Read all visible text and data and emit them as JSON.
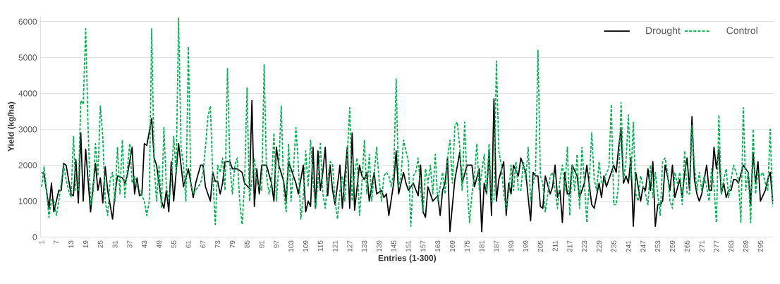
{
  "chart_data": {
    "type": "line",
    "xlabel": "Entries (1-300)",
    "ylabel": "Yield (kg/ha)",
    "xlim": [
      0.5,
      300.5
    ],
    "ylim": [
      0,
      6150
    ],
    "xticks": [
      1,
      7,
      13,
      19,
      25,
      31,
      37,
      43,
      49,
      55,
      61,
      67,
      73,
      79,
      85,
      91,
      97,
      103,
      109,
      115,
      121,
      127,
      133,
      139,
      145,
      151,
      157,
      163,
      169,
      175,
      181,
      187,
      193,
      199,
      205,
      211,
      217,
      223,
      229,
      235,
      241,
      247,
      253,
      259,
      265,
      271,
      277,
      283,
      289,
      295
    ],
    "yticks": [
      0,
      1000,
      2000,
      3000,
      4000,
      5000,
      6000
    ],
    "grid": "y",
    "legend": "top right",
    "marker": "none",
    "series": [
      {
        "name": "Drought",
        "color": "#000000",
        "line_style": "solid",
        "x": [
          1,
          2,
          4,
          5,
          6,
          8,
          9,
          10,
          11,
          13,
          14,
          15,
          16,
          17,
          18,
          19,
          21,
          23,
          24,
          25,
          26,
          27,
          28,
          30,
          31,
          32,
          34,
          35,
          36,
          38,
          39,
          40,
          41,
          42,
          43,
          44,
          46,
          47,
          48,
          50,
          51,
          52,
          53,
          54,
          55,
          57,
          59,
          61,
          63,
          64,
          66,
          67,
          68,
          70,
          71,
          72,
          73,
          74,
          75,
          76,
          78,
          79,
          81,
          83,
          84,
          86,
          87,
          88,
          89,
          90,
          91,
          93,
          94,
          95,
          96,
          97,
          98,
          100,
          101,
          102,
          104,
          105,
          106,
          108,
          109,
          110,
          111,
          112,
          113,
          114,
          115,
          116,
          117,
          118,
          119,
          120,
          121,
          123,
          124,
          125,
          126,
          127,
          128,
          129,
          131,
          132,
          133,
          134,
          135,
          137,
          138,
          140,
          141,
          142,
          143,
          145,
          146,
          147,
          149,
          150,
          151,
          153,
          155,
          156,
          157,
          158,
          159,
          161,
          163,
          164,
          165,
          166,
          167,
          168,
          170,
          172,
          173,
          175,
          177,
          178,
          180,
          181,
          182,
          183,
          184,
          185,
          186,
          187,
          188,
          190,
          191,
          192,
          193,
          194,
          196,
          197,
          199,
          200,
          201,
          202,
          203,
          204,
          205,
          206,
          207,
          209,
          210,
          211,
          212,
          213,
          214,
          215,
          216,
          217,
          218,
          220,
          221,
          223,
          224,
          226,
          227,
          229,
          230,
          231,
          232,
          233,
          235,
          236,
          237,
          238,
          239,
          240,
          241,
          242,
          243,
          244,
          246,
          247,
          248,
          249,
          250,
          251,
          252,
          253,
          254,
          255,
          256,
          257,
          258,
          259,
          260,
          262,
          263,
          264,
          265,
          266,
          267,
          268,
          269,
          270,
          271,
          273,
          274,
          275,
          276,
          277,
          278,
          279,
          280,
          281,
          282,
          283,
          284,
          285,
          286,
          288,
          290,
          291,
          292,
          293,
          294,
          295,
          297,
          298,
          299,
          300
        ],
        "values": [
          1800,
          1750,
          800,
          1500,
          700,
          1300,
          1300,
          2050,
          2000,
          1200,
          1150,
          2150,
          950,
          2900,
          1000,
          2450,
          700,
          2050,
          1300,
          1650,
          950,
          1950,
          1300,
          500,
          1200,
          1700,
          1650,
          1500,
          1700,
          2500,
          1200,
          1650,
          1150,
          1200,
          2600,
          2550,
          3300,
          2200,
          2000,
          1000,
          800,
          1300,
          700,
          2100,
          1000,
          2600,
          1400,
          1900,
          1100,
          1500,
          2000,
          2000,
          1400,
          1000,
          1800,
          1550,
          1550,
          1200,
          1500,
          2100,
          2100,
          1900,
          1900,
          1800,
          1500,
          1350,
          3800,
          850,
          1900,
          1200,
          2000,
          2000,
          1750,
          1500,
          1000,
          2500,
          2000,
          1550,
          1000,
          2100,
          1700,
          1500,
          1200,
          2000,
          700,
          1000,
          850,
          2500,
          800,
          2400,
          1300,
          1800,
          2500,
          1150,
          2000,
          1300,
          900,
          2000,
          800,
          1700,
          2500,
          800,
          2900,
          750,
          2000,
          1700,
          1600,
          1800,
          1000,
          1800,
          1200,
          1300,
          1100,
          1200,
          600,
          1500,
          2400,
          1200,
          1800,
          1500,
          1300,
          1500,
          1150,
          2000,
          700,
          550,
          1400,
          1000,
          1150,
          600,
          1300,
          1500,
          2200,
          150,
          1600,
          2350,
          1500,
          2000,
          2000,
          1400,
          1900,
          150,
          1500,
          1200,
          2400,
          600,
          3850,
          1000,
          1600,
          2100,
          600,
          1500,
          1200,
          2000,
          1700,
          2200,
          1800,
          1100,
          450,
          1800,
          1700,
          1700,
          850,
          800,
          1700,
          1200,
          1400,
          2000,
          1100,
          1300,
          400,
          1800,
          1200,
          1200,
          2000,
          1700,
          1100,
          1500,
          2000,
          900,
          800,
          1500,
          1100,
          1700,
          1400,
          1600,
          2000,
          1800,
          2500,
          3000,
          1500,
          1700,
          1500,
          2200,
          300,
          1800,
          1000,
          1400,
          1300,
          1900,
          1300,
          2100,
          300,
          900,
          900,
          1000,
          2000,
          1700,
          1300,
          2000,
          1100,
          1600,
          1100,
          1800,
          2200,
          1300,
          3350,
          1600,
          1200,
          1000,
          1200,
          2000,
          1300,
          1300,
          2500,
          1900,
          2450,
          1200,
          1500,
          1100,
          1300,
          1300,
          1600,
          1600,
          1500,
          2000,
          1800,
          900,
          2350,
          1500,
          2100,
          1000,
          1300,
          1600,
          1800,
          1000
        ]
      },
      {
        "name": "Control",
        "color": "#00b050",
        "line_style": "dashed",
        "x": [
          1,
          2,
          4,
          5,
          6,
          7,
          8,
          9,
          10,
          11,
          12,
          13,
          14,
          15,
          16,
          17,
          18,
          19,
          20,
          21,
          22,
          23,
          24,
          25,
          26,
          27,
          28,
          29,
          30,
          31,
          32,
          33,
          34,
          35,
          37,
          38,
          39,
          40,
          41,
          42,
          43,
          44,
          45,
          46,
          47,
          48,
          49,
          50,
          51,
          52,
          53,
          54,
          55,
          56,
          57,
          58,
          59,
          60,
          61,
          62,
          63,
          64,
          66,
          67,
          68,
          69,
          70,
          71,
          72,
          73,
          74,
          75,
          76,
          77,
          78,
          79,
          80,
          81,
          82,
          83,
          84,
          85,
          86,
          87,
          88,
          89,
          90,
          91,
          92,
          93,
          94,
          95,
          96,
          97,
          98,
          99,
          100,
          101,
          102,
          103,
          104,
          105,
          106,
          107,
          108,
          109,
          110,
          111,
          112,
          113,
          114,
          115,
          116,
          117,
          118,
          119,
          120,
          121,
          122,
          123,
          124,
          125,
          126,
          127,
          128,
          129,
          130,
          131,
          132,
          133,
          134,
          135,
          136,
          138,
          139,
          140,
          141,
          142,
          143,
          144,
          145,
          146,
          147,
          148,
          149,
          150,
          151,
          152,
          153,
          154,
          155,
          156,
          157,
          158,
          159,
          160,
          161,
          162,
          163,
          164,
          165,
          166,
          167,
          168,
          169,
          170,
          171,
          172,
          173,
          174,
          175,
          176,
          177,
          178,
          179,
          180,
          181,
          182,
          183,
          184,
          185,
          186,
          187,
          188,
          189,
          190,
          191,
          192,
          193,
          194,
          195,
          196,
          197,
          198,
          199,
          200,
          201,
          202,
          203,
          204,
          205,
          206,
          207,
          208,
          209,
          210,
          211,
          212,
          213,
          214,
          215,
          216,
          217,
          218,
          219,
          220,
          221,
          222,
          223,
          224,
          225,
          226,
          227,
          228,
          229,
          230,
          231,
          232,
          233,
          234,
          235,
          236,
          237,
          238,
          239,
          240,
          241,
          242,
          243,
          244,
          245,
          246,
          247,
          248,
          249,
          250,
          251,
          252,
          253,
          254,
          255,
          256,
          257,
          258,
          259,
          260,
          261,
          262,
          263,
          264,
          265,
          266,
          267,
          268,
          269,
          270,
          271,
          272,
          273,
          274,
          275,
          276,
          277,
          278,
          279,
          280,
          281,
          282,
          283,
          284,
          285,
          286,
          287,
          288,
          289,
          290,
          291,
          292,
          293,
          294,
          295,
          296,
          297,
          298,
          299,
          300
        ],
        "values": [
          1400,
          1950,
          550,
          1050,
          1000,
          600,
          1000,
          1500,
          2000,
          1600,
          1300,
          1100,
          2800,
          1300,
          1300,
          3800,
          3700,
          5800,
          3000,
          900,
          1200,
          2600,
          1700,
          3650,
          2800,
          1000,
          600,
          1600,
          1800,
          1000,
          2500,
          1200,
          2700,
          1100,
          2600,
          1500,
          1700,
          1400,
          1300,
          1150,
          1000,
          600,
          1000,
          5800,
          2000,
          1000,
          2000,
          800,
          3050,
          1400,
          1000,
          1500,
          2800,
          1800,
          6100,
          2500,
          2000,
          1000,
          5300,
          1500,
          1200,
          1300,
          1500,
          1800,
          2500,
          3350,
          3650,
          1700,
          350,
          2000,
          1800,
          2200,
          1300,
          4700,
          2000,
          1200,
          2000,
          2200,
          1000,
          350,
          1500,
          4150,
          1000,
          1600,
          2200,
          1500,
          1400,
          1300,
          4800,
          1700,
          1200,
          1500,
          2900,
          1000,
          2000,
          3650,
          1300,
          700,
          2600,
          1000,
          1900,
          3050,
          2000,
          500,
          1100,
          2400,
          1400,
          2700,
          1600,
          800,
          1500,
          2600,
          1200,
          800,
          1600,
          2100,
          2000,
          1000,
          500,
          1300,
          1700,
          1000,
          2300,
          3600,
          1000,
          1800,
          2200,
          600,
          1500,
          2700,
          1200,
          2300,
          1000,
          2500,
          1600,
          1000,
          1700,
          1800,
          1700,
          1400,
          1800,
          4400,
          1400,
          1700,
          2700,
          2400,
          2100,
          300,
          1700,
          1800,
          2200,
          1300,
          700,
          1900,
          1500,
          2000,
          1200,
          2300,
          1000,
          1400,
          1800,
          1200,
          2200,
          2700,
          1500,
          3100,
          3200,
          2500,
          1300,
          3200,
          1500,
          400,
          1200,
          1700,
          2600,
          1300,
          1800,
          2300,
          1200,
          2600,
          1000,
          1000,
          4900,
          2400,
          2000,
          1200,
          800,
          1200,
          2000,
          1300,
          2100,
          1300,
          1300,
          2100,
          1600,
          2500,
          1000,
          1500,
          1800,
          5200,
          1700,
          1500,
          700,
          1200,
          1700,
          1800,
          1300,
          800,
          1600,
          2000,
          1300,
          2500,
          600,
          2000,
          1300,
          2300,
          800,
          2500,
          1500,
          400,
          1600,
          2900,
          1600,
          1300,
          2100,
          1500,
          1500,
          1800,
          1900,
          3700,
          900,
          900,
          1500,
          3750,
          1600,
          2100,
          3400,
          1600,
          3200,
          1200,
          1000,
          1700,
          1400,
          1200,
          900,
          2000,
          1100,
          1800,
          1200,
          600,
          2100,
          2200,
          1800,
          1000,
          800,
          1800,
          1500,
          1800,
          900,
          2400,
          1200,
          1200,
          3100,
          2000,
          1300,
          1800,
          1300,
          1700,
          1400,
          1000,
          1900,
          1400,
          400,
          3400,
          1200,
          1600,
          1900,
          1100,
          1600,
          2000,
          1800,
          1600,
          400,
          3600,
          1300,
          1800,
          400,
          3000,
          1200,
          1800,
          1700,
          1800,
          1500,
          1300,
          3000,
          850
        ]
      }
    ]
  }
}
